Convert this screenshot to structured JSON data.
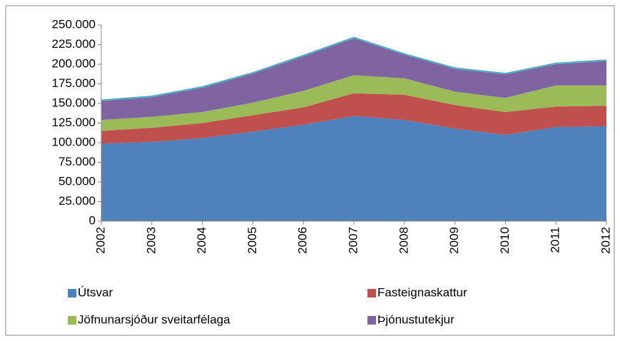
{
  "chart_data": {
    "type": "stacked_area",
    "categories": [
      "2002",
      "2003",
      "2004",
      "2005",
      "2006",
      "2007",
      "2008",
      "2009",
      "2010",
      "2011",
      "2012"
    ],
    "series": [
      {
        "name": "Útsvar",
        "color": "#4f81bd",
        "values": [
          99000,
          101000,
          106000,
          114000,
          123000,
          134000,
          129000,
          118000,
          110000,
          120000,
          121000
        ]
      },
      {
        "name": "Fasteignaskattur",
        "color": "#c0504d",
        "values": [
          16000,
          18000,
          19000,
          21000,
          22000,
          29000,
          32000,
          30000,
          29000,
          26000,
          26000
        ]
      },
      {
        "name": "Jöfnunarsjóður sveitarfélaga",
        "color": "#9bbb59",
        "values": [
          14000,
          14000,
          14000,
          16000,
          21000,
          23000,
          21000,
          17000,
          18000,
          27000,
          26000
        ]
      },
      {
        "name": "Þjónustutekjur",
        "color": "#8064a2",
        "values": [
          24000,
          25000,
          31000,
          37000,
          44000,
          47000,
          30000,
          29000,
          30000,
          27000,
          31000
        ]
      },
      {
        "color": "#4bacc6",
        "values": [
          2000,
          2000,
          2000,
          2000,
          2000,
          2000,
          2000,
          2000,
          2000,
          2000,
          2000
        ]
      }
    ],
    "ylim": [
      0,
      250000
    ],
    "yticks": [
      0,
      {
        "value": 25000,
        "label": "25.000"
      },
      {
        "value": 50000,
        "label": "50.000"
      },
      {
        "value": 75000,
        "label": "75.000"
      },
      {
        "value": 100000,
        "label": "100.000"
      },
      {
        "value": 125000,
        "label": "125.000"
      },
      {
        "value": 150000,
        "label": "150.000"
      },
      {
        "value": 175000,
        "label": "175.000"
      },
      {
        "value": 200000,
        "label": "200.000"
      },
      {
        "value": 225000,
        "label": "225.000"
      },
      {
        "value": 250000,
        "label": "250.000"
      }
    ],
    "grid": false
  }
}
